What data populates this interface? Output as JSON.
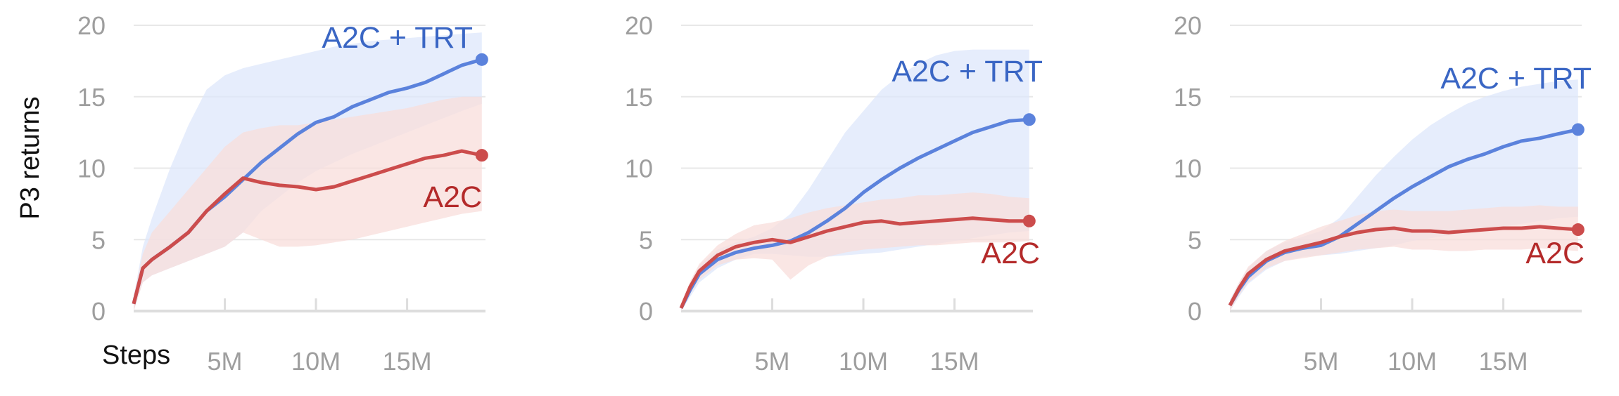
{
  "colors": {
    "a2c_trt": "#3a66c4",
    "a2c_trt_line": "#5b82dc",
    "a2c_trt_band": "#dde7fb",
    "a2c": "#b42a2a",
    "a2c_line": "#cc4c4c",
    "a2c_band": "#f8dddb",
    "grid": "#e8e8e8",
    "axis": "#dddddd",
    "tick": "#9e9e9e"
  },
  "y_axis_title": "P3 returns",
  "x_axis_title": "Steps",
  "chart_data": [
    {
      "type": "line",
      "x_unit": "M steps",
      "xlim": [
        0,
        19.3
      ],
      "ylim": [
        0,
        20
      ],
      "y_ticks": [
        "0",
        "5",
        "10",
        "15",
        "20"
      ],
      "x_ticks": [
        "5M",
        "10M",
        "15M"
      ],
      "grid": true,
      "series": [
        {
          "name": "A2C + TRT",
          "x": [
            0,
            0.5,
            1,
            2,
            3,
            4,
            5,
            6,
            7,
            8,
            9,
            10,
            11,
            12,
            13,
            14,
            15,
            16,
            17,
            18,
            19.1
          ],
          "y": [
            0.5,
            3.0,
            3.6,
            4.5,
            5.5,
            7.0,
            8.0,
            9.2,
            10.4,
            11.4,
            12.4,
            13.2,
            13.6,
            14.3,
            14.8,
            15.3,
            15.6,
            16.0,
            16.6,
            17.2,
            17.6
          ],
          "band_upper": [
            1.0,
            4.5,
            6.5,
            10,
            13,
            15.5,
            16.5,
            17.0,
            17.3,
            17.6,
            17.9,
            18.2,
            18.5,
            18.7,
            18.9,
            19.0,
            19.1,
            19.2,
            19.3,
            19.4,
            19.5
          ],
          "band_lower": [
            0,
            2.0,
            2.5,
            3.0,
            3.5,
            4.0,
            4.5,
            5.5,
            7.0,
            8.0,
            9.0,
            9.8,
            10.4,
            11.0,
            11.5,
            12.0,
            12.5,
            13.0,
            13.5,
            14.0,
            14.5
          ]
        },
        {
          "name": "A2C",
          "x": [
            0,
            0.5,
            1,
            2,
            3,
            4,
            5,
            6,
            7,
            8,
            9,
            10,
            11,
            12,
            13,
            14,
            15,
            16,
            17,
            18,
            19.1
          ],
          "y": [
            0.5,
            3.0,
            3.6,
            4.5,
            5.5,
            7.0,
            8.2,
            9.3,
            9.0,
            8.8,
            8.7,
            8.5,
            8.7,
            9.1,
            9.5,
            9.9,
            10.3,
            10.7,
            10.9,
            11.2,
            10.9
          ],
          "band_upper": [
            1.0,
            4.0,
            5.5,
            7.0,
            8.5,
            10.0,
            11.5,
            12.5,
            12.8,
            13.0,
            13.0,
            13.2,
            13.4,
            13.6,
            13.8,
            14.0,
            14.2,
            14.5,
            14.8,
            15.0,
            15.0
          ],
          "band_lower": [
            0,
            2.0,
            2.5,
            3.0,
            3.5,
            4.0,
            4.5,
            5.5,
            5.0,
            4.5,
            4.5,
            4.6,
            4.8,
            5.0,
            5.3,
            5.6,
            5.9,
            6.2,
            6.5,
            6.8,
            7.0
          ]
        }
      ]
    },
    {
      "type": "line",
      "x_unit": "M steps",
      "xlim": [
        0,
        19.3
      ],
      "ylim": [
        0,
        20
      ],
      "y_ticks": [
        "0",
        "5",
        "10",
        "15",
        "20"
      ],
      "x_ticks": [
        "5M",
        "10M",
        "15M"
      ],
      "grid": true,
      "series": [
        {
          "name": "A2C + TRT",
          "x": [
            0,
            0.5,
            1,
            2,
            3,
            4,
            5,
            6,
            7,
            8,
            9,
            10,
            11,
            12,
            13,
            14,
            15,
            16,
            17,
            18,
            19.1
          ],
          "y": [
            0.2,
            1.5,
            2.6,
            3.6,
            4.1,
            4.4,
            4.6,
            4.9,
            5.5,
            6.3,
            7.2,
            8.3,
            9.2,
            10.0,
            10.7,
            11.3,
            11.9,
            12.5,
            12.9,
            13.3,
            13.4
          ],
          "band_upper": [
            0.5,
            2.0,
            3.2,
            4.3,
            4.8,
            5.2,
            5.8,
            6.8,
            8.5,
            10.5,
            12.5,
            14.0,
            15.5,
            16.5,
            17.3,
            17.9,
            18.2,
            18.3,
            18.3,
            18.3,
            18.3
          ],
          "band_lower": [
            0,
            1.0,
            2.0,
            3.0,
            3.6,
            4.0,
            4.0,
            3.9,
            3.8,
            3.8,
            3.9,
            4.0,
            4.1,
            4.3,
            4.5,
            4.7,
            4.9,
            5.1,
            5.3,
            5.5,
            5.6
          ]
        },
        {
          "name": "A2C",
          "x": [
            0,
            0.5,
            1,
            2,
            3,
            4,
            5,
            6,
            7,
            8,
            9,
            10,
            11,
            12,
            13,
            14,
            15,
            16,
            17,
            18,
            19.1
          ],
          "y": [
            0.2,
            1.7,
            2.8,
            3.9,
            4.5,
            4.8,
            5.0,
            4.8,
            5.2,
            5.6,
            5.9,
            6.2,
            6.3,
            6.1,
            6.2,
            6.3,
            6.4,
            6.5,
            6.4,
            6.3,
            6.3
          ],
          "band_upper": [
            0.4,
            2.1,
            3.3,
            4.6,
            5.4,
            6.0,
            6.2,
            6.5,
            6.9,
            7.2,
            7.4,
            7.6,
            7.8,
            7.9,
            8.1,
            8.1,
            8.2,
            8.3,
            8.2,
            8.0,
            7.9
          ],
          "band_lower": [
            0,
            1.2,
            2.2,
            3.2,
            3.6,
            3.7,
            3.6,
            2.2,
            3.2,
            3.8,
            4.1,
            4.3,
            4.4,
            4.5,
            4.6,
            4.6,
            4.7,
            4.8,
            4.8,
            4.8,
            4.9
          ]
        }
      ]
    },
    {
      "type": "line",
      "x_unit": "M steps",
      "xlim": [
        0,
        19.3
      ],
      "ylim": [
        0,
        20
      ],
      "y_ticks": [
        "0",
        "5",
        "10",
        "15",
        "20"
      ],
      "x_ticks": [
        "5M",
        "10M",
        "15M"
      ],
      "grid": true,
      "series": [
        {
          "name": "A2C + TRT",
          "x": [
            0,
            0.5,
            1,
            2,
            3,
            4,
            5,
            6,
            7,
            8,
            9,
            10,
            11,
            12,
            13,
            14,
            15,
            16,
            17,
            18,
            19.1
          ],
          "y": [
            0.4,
            1.5,
            2.4,
            3.5,
            4.1,
            4.4,
            4.6,
            5.2,
            6.1,
            7.0,
            7.9,
            8.7,
            9.4,
            10.1,
            10.6,
            11.0,
            11.5,
            11.9,
            12.1,
            12.4,
            12.7
          ],
          "band_upper": [
            0.8,
            2.0,
            3.0,
            4.2,
            4.8,
            5.2,
            5.6,
            6.5,
            8.0,
            9.5,
            10.8,
            12.0,
            13.0,
            13.8,
            14.5,
            15.0,
            15.4,
            15.7,
            15.9,
            16.1,
            16.2
          ],
          "band_lower": [
            0,
            1.0,
            1.9,
            2.9,
            3.5,
            3.8,
            3.9,
            4.0,
            4.2,
            4.4,
            4.6,
            4.9,
            5.1,
            5.3,
            5.5,
            5.7,
            5.9,
            6.1,
            6.3,
            6.5,
            6.6
          ]
        },
        {
          "name": "A2C",
          "x": [
            0,
            0.5,
            1,
            2,
            3,
            4,
            5,
            6,
            7,
            8,
            9,
            10,
            11,
            12,
            13,
            14,
            15,
            16,
            17,
            18,
            19.1
          ],
          "y": [
            0.4,
            1.6,
            2.6,
            3.6,
            4.2,
            4.5,
            4.8,
            5.2,
            5.5,
            5.7,
            5.8,
            5.6,
            5.6,
            5.5,
            5.6,
            5.7,
            5.8,
            5.8,
            5.9,
            5.8,
            5.7
          ],
          "band_upper": [
            0.7,
            2.0,
            3.1,
            4.2,
            4.9,
            5.4,
            5.9,
            6.3,
            6.7,
            7.0,
            7.1,
            7.0,
            7.0,
            7.0,
            7.1,
            7.2,
            7.3,
            7.3,
            7.4,
            7.3,
            7.3
          ],
          "band_lower": [
            0,
            1.1,
            2.0,
            3.0,
            3.5,
            3.7,
            3.9,
            4.1,
            4.3,
            4.4,
            4.5,
            4.3,
            4.3,
            4.2,
            4.2,
            4.3,
            4.3,
            4.3,
            4.4,
            4.3,
            4.2
          ]
        }
      ]
    }
  ]
}
